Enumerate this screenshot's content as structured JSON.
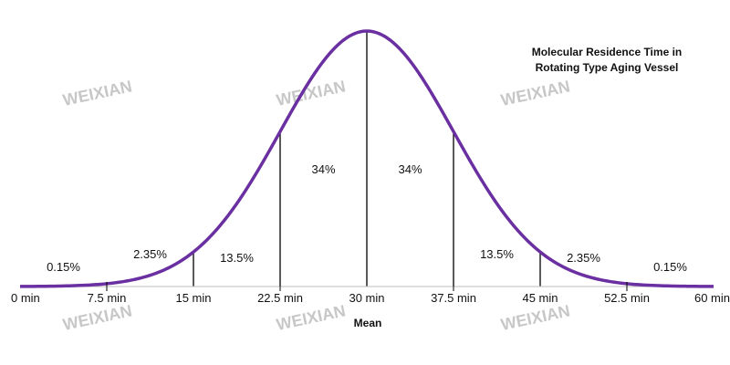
{
  "chart_data": {
    "type": "line",
    "title_lines": [
      "Molecular Residence Time in",
      "Rotating Type Aging Vessel"
    ],
    "xlabel": "Mean",
    "ylabel": "",
    "mean": 30,
    "sd": 7.5,
    "xlim": [
      0,
      60
    ],
    "grid": false,
    "curve_color": "#6a2fa0",
    "x_ticks": [
      0,
      7.5,
      15,
      22.5,
      30,
      37.5,
      45,
      52.5,
      60
    ],
    "x_tick_labels": [
      "0 min",
      "7.5 min",
      "15 min",
      "22.5 min",
      "30 min",
      "37.5 min",
      "45 min",
      "52.5 min",
      "60 min"
    ],
    "region_labels": [
      {
        "x": 3.75,
        "text": "0.15%"
      },
      {
        "x": 11.25,
        "text": "2.35%"
      },
      {
        "x": 18.75,
        "text": "13.5%"
      },
      {
        "x": 26.25,
        "text": "34%"
      },
      {
        "x": 33.75,
        "text": "34%"
      },
      {
        "x": 41.25,
        "text": "13.5%"
      },
      {
        "x": 48.75,
        "text": "2.35%"
      },
      {
        "x": 56.25,
        "text": "0.15%"
      }
    ],
    "watermark_text": "WEIXIAN"
  }
}
